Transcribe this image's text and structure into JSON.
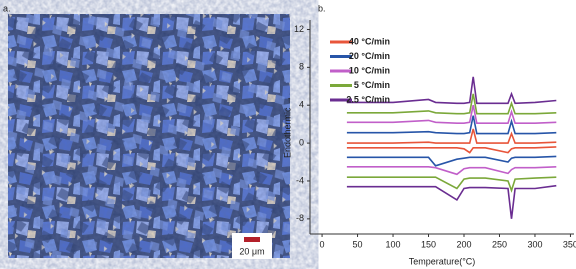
{
  "figure_a": {
    "label": "a.",
    "scale_bar": "20 μm"
  },
  "chart_data": {
    "type": "line",
    "label": "b.",
    "x_label": "Temperature(°C)",
    "y_label": "Endothermic →",
    "x": [
      35,
      100,
      150,
      160,
      190,
      200,
      208,
      213,
      218,
      230,
      262,
      267,
      272,
      300,
      330
    ],
    "xlim": [
      -17,
      355
    ],
    "xticks": [
      0,
      50,
      100,
      150,
      200,
      250,
      300,
      350
    ],
    "ylim": [
      -9.6,
      13
    ],
    "yticks": [
      12,
      8,
      4,
      0,
      -4,
      -8
    ],
    "legend": "upper left",
    "series": [
      {
        "name": "40 °C/min",
        "color": "#e8553a",
        "values": [
          0.0,
          0.0,
          0.1,
          0.0,
          0.0,
          0.0,
          0.0,
          1.5,
          0.0,
          0.0,
          0.0,
          1.0,
          0.0,
          0.0,
          0.1
        ]
      },
      {
        "name": "20 °C/min",
        "color": "#2755a8",
        "values": [
          1.1,
          1.1,
          1.2,
          1.1,
          1.0,
          1.0,
          1.1,
          2.9,
          1.0,
          1.0,
          1.0,
          2.3,
          1.0,
          1.0,
          1.1
        ]
      },
      {
        "name": "10 °C/min",
        "color": "#c15fc9",
        "values": [
          2.2,
          2.2,
          2.4,
          2.2,
          2.1,
          2.1,
          2.2,
          4.0,
          2.1,
          2.1,
          2.1,
          3.3,
          2.1,
          2.1,
          2.2
        ]
      },
      {
        "name": "5 °C/min",
        "color": "#7ba83a",
        "values": [
          3.2,
          3.2,
          3.4,
          3.2,
          3.1,
          3.1,
          3.2,
          5.2,
          3.1,
          3.1,
          3.1,
          4.2,
          3.1,
          3.1,
          3.2
        ]
      },
      {
        "name": "2.5 °C/min",
        "color": "#6a2d91",
        "values": [
          4.3,
          4.3,
          4.6,
          4.3,
          4.2,
          4.2,
          4.3,
          7.0,
          4.2,
          4.2,
          4.2,
          5.2,
          4.2,
          4.3,
          4.5
        ]
      },
      {
        "color": "#e8553a",
        "values": [
          -0.5,
          -0.5,
          -0.5,
          -0.5,
          -0.5,
          -0.6,
          -1.0,
          -0.5,
          -0.5,
          -0.5,
          -1.0,
          -0.6,
          -0.5,
          -0.5,
          -0.4
        ]
      },
      {
        "color": "#2755a8",
        "values": [
          -1.5,
          -1.5,
          -1.5,
          -2.4,
          -1.7,
          -1.6,
          -1.5,
          -1.5,
          -1.5,
          -1.5,
          -2.0,
          -1.6,
          -1.5,
          -1.5,
          -1.4
        ]
      },
      {
        "color": "#c15fc9",
        "values": [
          -2.5,
          -2.5,
          -2.5,
          -2.6,
          -3.3,
          -2.7,
          -2.6,
          -2.6,
          -2.6,
          -2.6,
          -3.2,
          -2.8,
          -2.6,
          -2.6,
          -2.5
        ]
      },
      {
        "color": "#7ba83a",
        "values": [
          -3.6,
          -3.6,
          -3.6,
          -3.6,
          -4.8,
          -3.8,
          -3.7,
          -3.7,
          -3.7,
          -3.7,
          -4.0,
          -5.0,
          -3.8,
          -3.7,
          -3.6
        ]
      },
      {
        "color": "#6a2d91",
        "values": [
          -4.6,
          -4.6,
          -4.6,
          -4.6,
          -6.0,
          -4.8,
          -4.7,
          -4.7,
          -4.7,
          -4.7,
          -4.8,
          -8.0,
          -4.8,
          -4.8,
          -4.5
        ]
      }
    ]
  }
}
